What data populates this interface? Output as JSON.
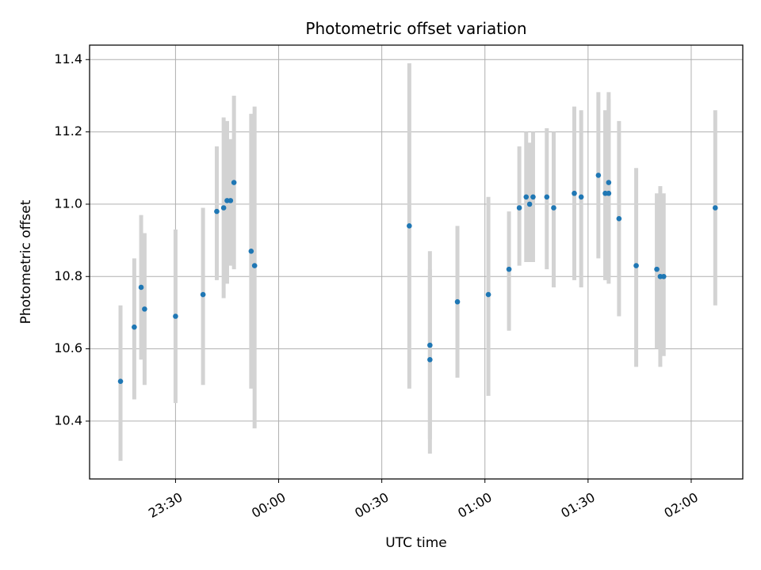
{
  "chart_data": {
    "type": "scatter",
    "title": "Photometric offset variation",
    "xlabel": "UTC time",
    "ylabel": "Photometric offset",
    "x_is_time": true,
    "xlim": [
      "23:05",
      "02:15"
    ],
    "ylim": [
      10.24,
      11.44
    ],
    "xticks": [
      "23:30",
      "00:00",
      "00:30",
      "01:00",
      "01:30",
      "02:00"
    ],
    "yticks": [
      "10.4",
      "10.6",
      "10.8",
      "11.0",
      "11.2",
      "11.4"
    ],
    "grid": true,
    "colors": {
      "point": "#1f77b4",
      "errorbar": "#d3d3d3",
      "grid": "#b0b0b0"
    },
    "points": [
      {
        "t": "23:14",
        "y": 10.51,
        "lo": 10.29,
        "hi": 10.72
      },
      {
        "t": "23:18",
        "y": 10.66,
        "lo": 10.46,
        "hi": 10.85
      },
      {
        "t": "23:20",
        "y": 10.77,
        "lo": 10.57,
        "hi": 10.97
      },
      {
        "t": "23:21",
        "y": 10.71,
        "lo": 10.5,
        "hi": 10.92
      },
      {
        "t": "23:30",
        "y": 10.69,
        "lo": 10.45,
        "hi": 10.93
      },
      {
        "t": "23:38",
        "y": 10.75,
        "lo": 10.5,
        "hi": 10.99
      },
      {
        "t": "23:42",
        "y": 10.98,
        "lo": 10.79,
        "hi": 11.16
      },
      {
        "t": "23:44",
        "y": 10.99,
        "lo": 10.74,
        "hi": 11.24
      },
      {
        "t": "23:45",
        "y": 11.01,
        "lo": 10.78,
        "hi": 11.23
      },
      {
        "t": "23:46",
        "y": 11.01,
        "lo": 10.83,
        "hi": 11.18
      },
      {
        "t": "23:47",
        "y": 11.06,
        "lo": 10.82,
        "hi": 11.3
      },
      {
        "t": "23:52",
        "y": 10.87,
        "lo": 10.49,
        "hi": 11.25
      },
      {
        "t": "23:53",
        "y": 10.83,
        "lo": 10.38,
        "hi": 11.27
      },
      {
        "t": "00:38",
        "y": 10.94,
        "lo": 10.49,
        "hi": 11.39
      },
      {
        "t": "00:44",
        "y": 10.57,
        "lo": 10.31,
        "hi": 10.82
      },
      {
        "t": "00:44",
        "y": 10.61,
        "lo": 10.35,
        "hi": 10.87
      },
      {
        "t": "00:52",
        "y": 10.73,
        "lo": 10.52,
        "hi": 10.94
      },
      {
        "t": "01:01",
        "y": 10.75,
        "lo": 10.47,
        "hi": 11.02
      },
      {
        "t": "01:07",
        "y": 10.82,
        "lo": 10.65,
        "hi": 10.98
      },
      {
        "t": "01:10",
        "y": 10.99,
        "lo": 10.83,
        "hi": 11.16
      },
      {
        "t": "01:12",
        "y": 11.02,
        "lo": 10.84,
        "hi": 11.2
      },
      {
        "t": "01:13",
        "y": 11.0,
        "lo": 10.84,
        "hi": 11.17
      },
      {
        "t": "01:14",
        "y": 11.02,
        "lo": 10.84,
        "hi": 11.2
      },
      {
        "t": "01:18",
        "y": 11.02,
        "lo": 10.82,
        "hi": 11.21
      },
      {
        "t": "01:20",
        "y": 10.99,
        "lo": 10.77,
        "hi": 11.2
      },
      {
        "t": "01:26",
        "y": 11.03,
        "lo": 10.79,
        "hi": 11.27
      },
      {
        "t": "01:28",
        "y": 11.02,
        "lo": 10.77,
        "hi": 11.26
      },
      {
        "t": "01:33",
        "y": 11.08,
        "lo": 10.85,
        "hi": 11.31
      },
      {
        "t": "01:35",
        "y": 11.03,
        "lo": 10.79,
        "hi": 11.26
      },
      {
        "t": "01:36",
        "y": 11.03,
        "lo": 10.78,
        "hi": 11.29
      },
      {
        "t": "01:36",
        "y": 11.06,
        "lo": 10.8,
        "hi": 11.31
      },
      {
        "t": "01:39",
        "y": 10.96,
        "lo": 10.69,
        "hi": 11.23
      },
      {
        "t": "01:44",
        "y": 10.83,
        "lo": 10.55,
        "hi": 11.1
      },
      {
        "t": "01:50",
        "y": 10.82,
        "lo": 10.6,
        "hi": 11.03
      },
      {
        "t": "01:51",
        "y": 10.8,
        "lo": 10.55,
        "hi": 11.05
      },
      {
        "t": "01:52",
        "y": 10.8,
        "lo": 10.58,
        "hi": 11.03
      },
      {
        "t": "02:07",
        "y": 10.99,
        "lo": 10.72,
        "hi": 11.26
      }
    ]
  }
}
